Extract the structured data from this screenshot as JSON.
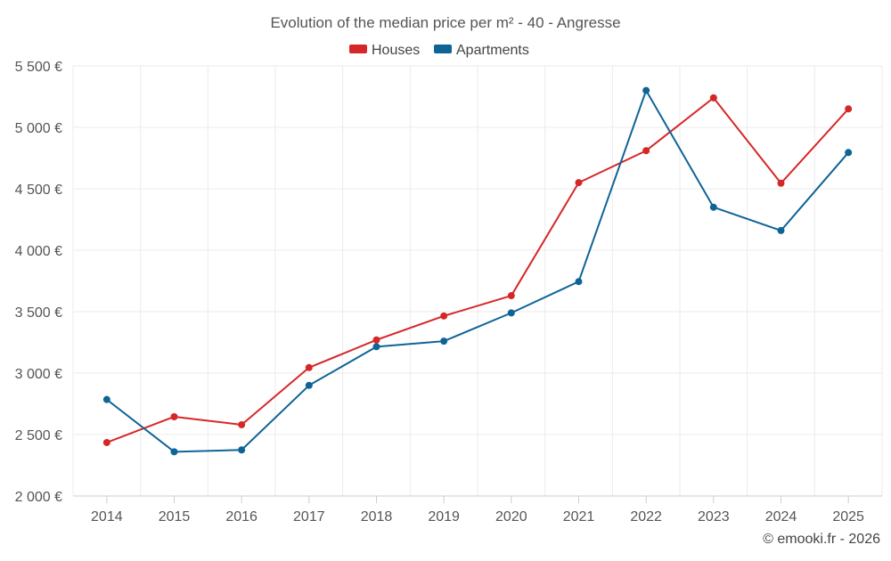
{
  "chart_data": {
    "type": "line",
    "title": "Evolution of the median price per m² - 40 - Angresse",
    "xlabel": "",
    "ylabel": "",
    "categories": [
      "2014",
      "2015",
      "2016",
      "2017",
      "2018",
      "2019",
      "2020",
      "2021",
      "2022",
      "2023",
      "2024",
      "2025"
    ],
    "series": [
      {
        "name": "Houses",
        "color": "#d62728",
        "values": [
          2435,
          2645,
          2580,
          3045,
          3270,
          3465,
          3630,
          4550,
          4810,
          5240,
          4545,
          5150
        ]
      },
      {
        "name": "Apartments",
        "color": "#0f6496",
        "values": [
          2785,
          2360,
          2375,
          2900,
          3215,
          3260,
          3490,
          3745,
          5300,
          4350,
          4160,
          4795
        ]
      }
    ],
    "ylim": [
      2000,
      5500
    ],
    "yticks": [
      2000,
      2500,
      3000,
      3500,
      4000,
      4500,
      5000,
      5500
    ],
    "ytick_labels": [
      "2 000 €",
      "2 500 €",
      "3 000 €",
      "3 500 €",
      "4 000 €",
      "4 500 €",
      "5 000 €",
      "5 500 €"
    ],
    "grid": true,
    "legend_position": "top-center"
  },
  "credit": "© emooki.fr - 2026"
}
